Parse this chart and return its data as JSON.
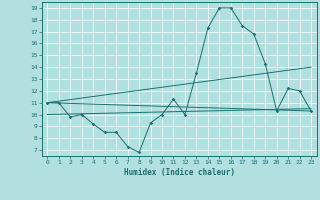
{
  "xlabel": "Humidex (Indice chaleur)",
  "background_color": "#b2e0e0",
  "line_color": "#1a7070",
  "grid_color": "#ffffff",
  "xlim": [
    -0.5,
    23.5
  ],
  "ylim": [
    6.5,
    19.5
  ],
  "xticks": [
    0,
    1,
    2,
    3,
    4,
    5,
    6,
    7,
    8,
    9,
    10,
    11,
    12,
    13,
    14,
    15,
    16,
    17,
    18,
    19,
    20,
    21,
    22,
    23
  ],
  "yticks": [
    7,
    8,
    9,
    10,
    11,
    12,
    13,
    14,
    15,
    16,
    17,
    18,
    19
  ],
  "main_line": {
    "x": [
      0,
      1,
      2,
      3,
      4,
      5,
      6,
      7,
      8,
      9,
      10,
      11,
      12,
      13,
      14,
      15,
      16,
      17,
      18,
      19,
      20,
      21,
      22,
      23
    ],
    "y": [
      11.0,
      11.0,
      9.8,
      10.0,
      9.2,
      8.5,
      8.5,
      7.3,
      6.8,
      9.3,
      10.0,
      11.3,
      10.0,
      13.5,
      17.3,
      19.0,
      19.0,
      17.5,
      16.8,
      14.3,
      10.3,
      12.2,
      12.0,
      10.3
    ]
  },
  "trend_line1": {
    "x": [
      0,
      23
    ],
    "y": [
      11.0,
      14.0
    ]
  },
  "trend_line2": {
    "x": [
      0,
      23
    ],
    "y": [
      10.0,
      10.5
    ]
  },
  "diag_line": {
    "x": [
      0,
      23
    ],
    "y": [
      11.0,
      10.3
    ]
  }
}
